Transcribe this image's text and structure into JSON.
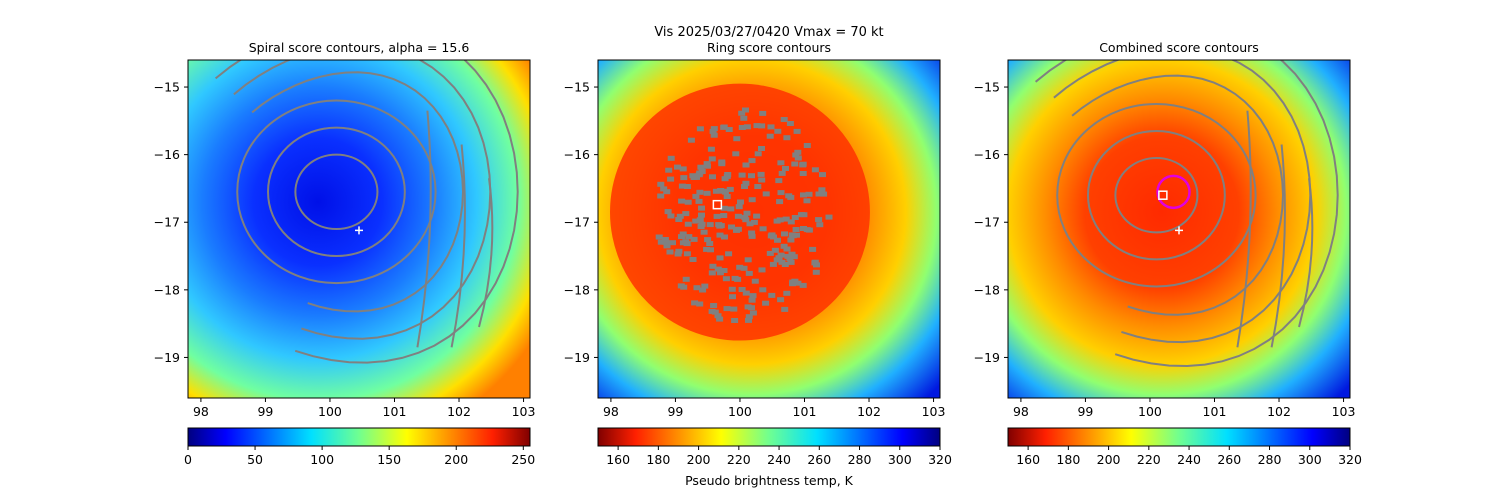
{
  "figure": {
    "suptitle_line1": "Vis  2025/03/27/0420    Vmax = 70 kt",
    "colorbar_label": "Pseudo brightness temp, K"
  },
  "colors": {
    "contour": "#808080",
    "center_marker": "#ffffff",
    "combined_circle": "#e000e0",
    "ring_fill": "#808080"
  },
  "chart_data": [
    {
      "type": "heatmap",
      "title": "Spiral score contours, alpha = 15.6",
      "xlim": [
        97.8,
        103.1
      ],
      "ylim": [
        -19.6,
        -14.6
      ],
      "xticks": [
        98,
        99,
        100,
        101,
        102,
        103
      ],
      "yticks": [
        -15,
        -16,
        -17,
        -18,
        -19
      ],
      "colormap": "jet",
      "colorbar_range": [
        0,
        255
      ],
      "colorbar_ticks": [
        0,
        50,
        100,
        150,
        200,
        250
      ],
      "markers": [
        {
          "kind": "plus",
          "lon": 100.45,
          "lat": -17.12
        }
      ],
      "contour_center": {
        "lon": 100.1,
        "lat": -16.55
      }
    },
    {
      "type": "heatmap",
      "title": "Ring score contours",
      "xlim": [
        97.8,
        103.1
      ],
      "ylim": [
        -19.6,
        -14.6
      ],
      "xticks": [
        98,
        99,
        100,
        101,
        102,
        103
      ],
      "yticks": [
        -15,
        -16,
        -17,
        -18,
        -19
      ],
      "colormap": "jet_r",
      "colorbar_range": [
        150,
        320
      ],
      "colorbar_ticks": [
        160,
        180,
        200,
        220,
        240,
        260,
        280,
        300,
        320
      ],
      "markers": [
        {
          "kind": "square",
          "lon": 99.65,
          "lat": -16.74
        }
      ],
      "ring_region": {
        "lon": 100.0,
        "lat": -16.85
      }
    },
    {
      "type": "heatmap",
      "title": "Combined score contours",
      "xlim": [
        97.8,
        103.1
      ],
      "ylim": [
        -19.6,
        -14.6
      ],
      "xticks": [
        98,
        99,
        100,
        101,
        102,
        103
      ],
      "yticks": [
        -15,
        -16,
        -17,
        -18,
        -19
      ],
      "colormap": "jet_r",
      "colorbar_range": [
        150,
        320
      ],
      "colorbar_ticks": [
        160,
        180,
        200,
        220,
        240,
        260,
        280,
        300,
        320
      ],
      "markers": [
        {
          "kind": "plus",
          "lon": 100.45,
          "lat": -17.12
        },
        {
          "kind": "square",
          "lon": 100.2,
          "lat": -16.6
        }
      ],
      "contour_center": {
        "lon": 100.1,
        "lat": -16.6
      }
    }
  ]
}
